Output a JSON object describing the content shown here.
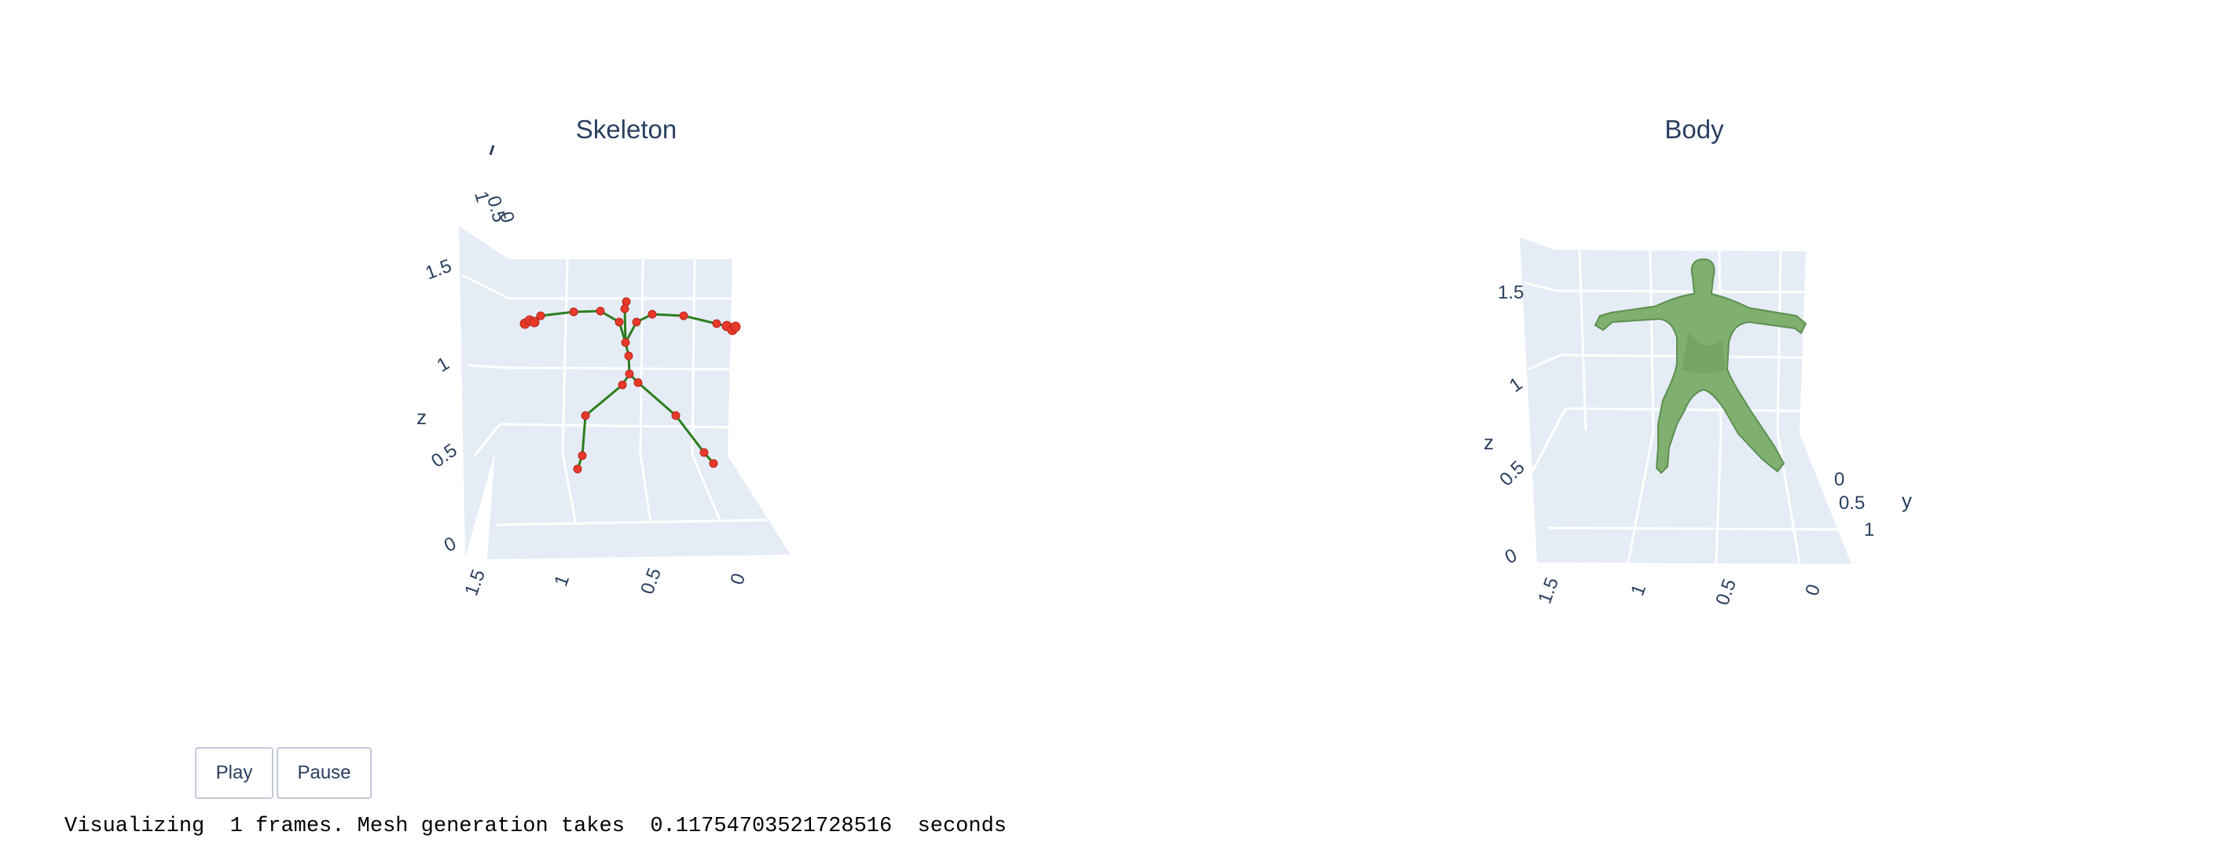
{
  "skeleton_panel": {
    "title": "Skeleton",
    "z_axis_title": "z",
    "z_ticks": [
      "0",
      "0.5",
      "1",
      "1.5"
    ],
    "x_ticks": [
      "1.5",
      "1",
      "0.5",
      "0"
    ],
    "top_ticks": [
      "1",
      "0.5",
      "0"
    ],
    "joint_color": "#e8392b",
    "bone_color": "#2e7d1e"
  },
  "body_panel": {
    "title": "Body",
    "z_axis_title": "z",
    "y_axis_title": "y",
    "z_ticks": [
      "0",
      "0.5",
      "1",
      "1.5"
    ],
    "x_ticks": [
      "1.5",
      "1",
      "0.5",
      "0"
    ],
    "y_ticks": [
      "0",
      "0.5",
      "1"
    ],
    "mesh_color": "#7fb06f"
  },
  "controls": {
    "play_label": "Play",
    "pause_label": "Pause"
  },
  "status": {
    "message": "Visualizing  1 frames. Mesh generation takes  0.11754703521728516  seconds"
  }
}
